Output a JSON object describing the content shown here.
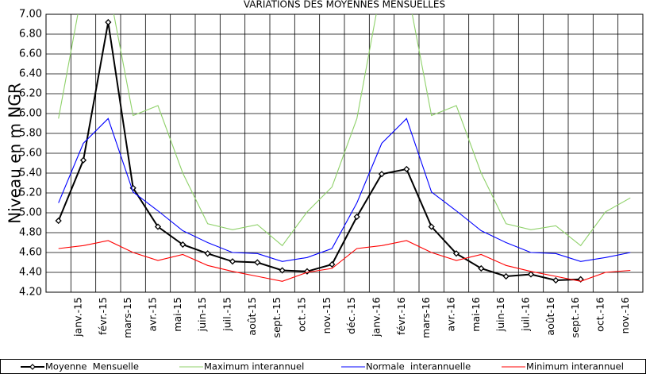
{
  "chart_data": {
    "type": "line",
    "title": "VARIATIONS DES MOYENNES MENSUELLES",
    "y_label": "Niveau en m NGR",
    "categories": [
      null,
      "janv.-15",
      "févr.-15",
      "mars-15",
      "avr.-15",
      "mai-15",
      "juin-15",
      "juil.-15",
      "août-15",
      "sept.-15",
      "oct.-15",
      "nov.-15",
      "déc.-15",
      "janv.-16",
      "févr.-16",
      "mars-16",
      "avr.-16",
      "mai-16",
      "juin-16",
      "juil.-16",
      "août-16",
      "sept.-16",
      "oct.-16",
      "nov.-16"
    ],
    "series": [
      {
        "name": "Moyenne  Mensuelle",
        "color": "#000000",
        "values": [
          4.92,
          5.53,
          6.92,
          5.25,
          4.86,
          4.68,
          4.59,
          4.51,
          4.5,
          4.42,
          4.41,
          4.48,
          4.96,
          5.39,
          5.44,
          4.86,
          4.59,
          4.44,
          4.36,
          4.38,
          4.32,
          4.33,
          null,
          null
        ]
      },
      {
        "name": "Maximum interannuel",
        "color": "#8fd16a",
        "values": [
          5.95,
          7.3,
          7.3,
          5.98,
          6.08,
          5.4,
          4.89,
          4.83,
          4.88,
          4.67,
          5.01,
          5.26,
          5.95,
          7.3,
          7.3,
          5.98,
          6.08,
          5.4,
          4.89,
          4.83,
          4.87,
          4.67,
          5.01,
          5.15
        ]
      },
      {
        "name": "Normale  interannuelle",
        "color": "#0000ff",
        "values": [
          5.1,
          5.7,
          5.95,
          5.21,
          5.02,
          4.82,
          4.7,
          4.6,
          4.59,
          4.51,
          4.55,
          4.64,
          5.1,
          5.7,
          5.95,
          5.21,
          5.02,
          4.82,
          4.7,
          4.6,
          4.59,
          4.51,
          4.55,
          4.6
        ]
      },
      {
        "name": "Minimum interannuel",
        "color": "#ff0000",
        "values": [
          4.64,
          4.67,
          4.72,
          4.6,
          4.52,
          4.58,
          4.47,
          4.41,
          4.36,
          4.31,
          4.4,
          4.44,
          4.64,
          4.67,
          4.72,
          4.6,
          4.52,
          4.58,
          4.47,
          4.41,
          4.36,
          4.31,
          4.4,
          4.42
        ]
      }
    ],
    "ylim": [
      4.2,
      7.0
    ],
    "yticks": [
      {
        "value": 4.2,
        "label": "4.20"
      },
      {
        "value": 4.4,
        "label": "4.40"
      },
      {
        "value": 4.6,
        "label": "4.60"
      },
      {
        "value": 4.8,
        "label": "4.80"
      },
      {
        "value": 5.0,
        "label": "5.00"
      },
      {
        "value": 5.2,
        "label": "5.20"
      },
      {
        "value": 5.4,
        "label": "5.40"
      },
      {
        "value": 5.6,
        "label": "5.60"
      },
      {
        "value": 5.8,
        "label": "5.80"
      },
      {
        "value": 6.0,
        "label": "6.00"
      },
      {
        "value": 6.2,
        "label": "6.20"
      },
      {
        "value": 6.4,
        "label": "6.40"
      },
      {
        "value": 6.6,
        "label": "6.60"
      },
      {
        "value": 6.8,
        "label": "6.80"
      },
      {
        "value": 7.0,
        "label": "7.00"
      }
    ],
    "grid": true,
    "legend": "bottom"
  }
}
